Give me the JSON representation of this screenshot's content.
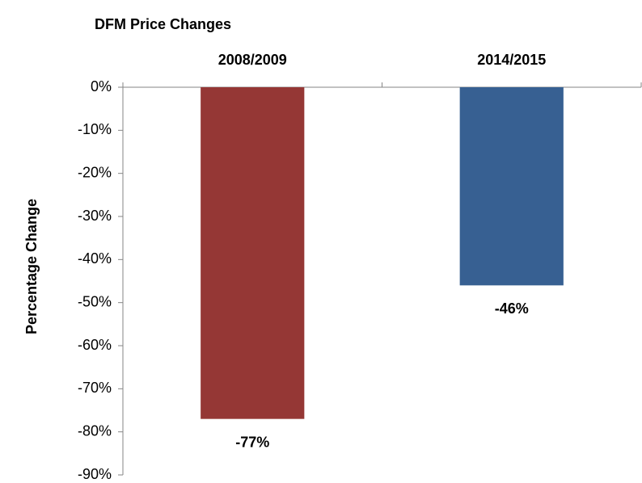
{
  "chart_data": {
    "type": "bar",
    "title": "DFM Price Changes",
    "y_label": "Percentage Change",
    "categories": [
      "2008/2009",
      "2014/2015"
    ],
    "values": [
      -77,
      -46
    ],
    "value_labels": [
      "-77%",
      "-46%"
    ],
    "colors": [
      "#953735",
      "#376092"
    ],
    "ylim": [
      -90,
      0
    ],
    "yticks": [
      {
        "value": 0,
        "label": "0%"
      },
      {
        "value": -10,
        "label": "-10%"
      },
      {
        "value": -20,
        "label": "-20%"
      },
      {
        "value": -30,
        "label": "-30%"
      },
      {
        "value": -40,
        "label": "-40%"
      },
      {
        "value": -50,
        "label": "-50%"
      },
      {
        "value": -60,
        "label": "-60%"
      },
      {
        "value": -70,
        "label": "-70%"
      },
      {
        "value": -80,
        "label": "-80%"
      },
      {
        "value": -90,
        "label": "-90%"
      }
    ],
    "grid": false
  }
}
